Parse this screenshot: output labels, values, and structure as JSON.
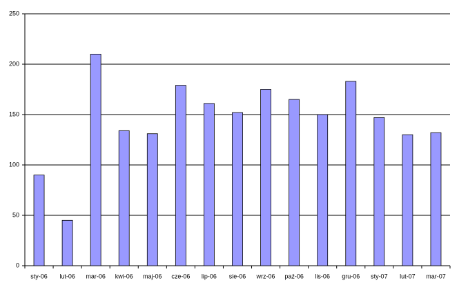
{
  "chart_data": {
    "type": "bar",
    "categories": [
      "sty-06",
      "lut-06",
      "mar-06",
      "kwi-06",
      "maj-06",
      "cze-06",
      "lip-06",
      "sie-06",
      "wrz-06",
      "paź-06",
      "lis-06",
      "gru-06",
      "sty-07",
      "lut-07",
      "mar-07"
    ],
    "values": [
      90,
      45,
      210,
      134,
      131,
      179,
      161,
      152,
      175,
      165,
      150,
      183,
      147,
      130,
      132
    ],
    "color": "#9999ff",
    "ylim": [
      0,
      250
    ],
    "yticks": [
      0,
      50,
      100,
      150,
      200,
      250
    ],
    "grid": true
  }
}
